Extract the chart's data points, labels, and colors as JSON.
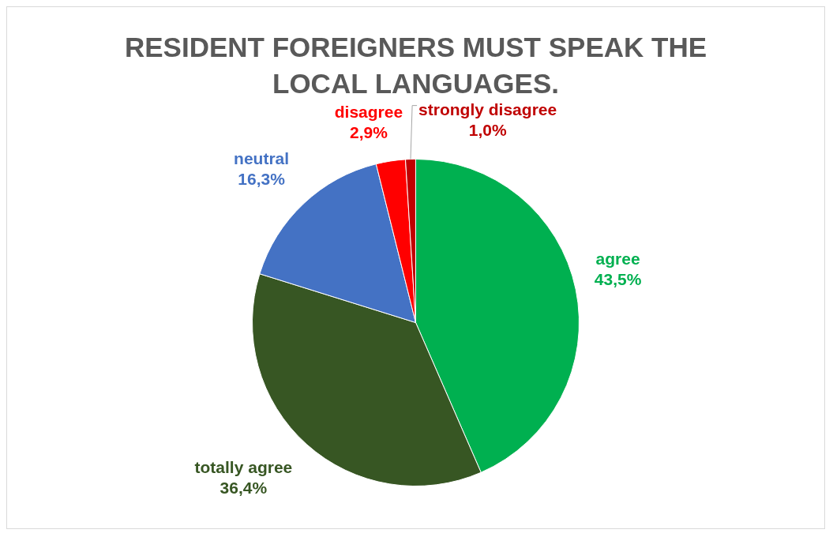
{
  "chart_data": {
    "type": "pie",
    "title": "RESIDENT FOREIGNERS MUST SPEAK THE LOCAL LANGUAGES.",
    "categories": [
      "agree",
      "totally agree",
      "neutral",
      "disagree",
      "strongly disagree"
    ],
    "values": [
      43.5,
      36.4,
      16.3,
      2.9,
      1.0
    ],
    "value_labels": [
      "43,5%",
      "36,4%",
      "16,3%",
      "2,9%",
      "1,0%"
    ],
    "colors": [
      "#00b050",
      "#375623",
      "#4472c4",
      "#ff0000",
      "#c00000"
    ],
    "legend": false
  }
}
